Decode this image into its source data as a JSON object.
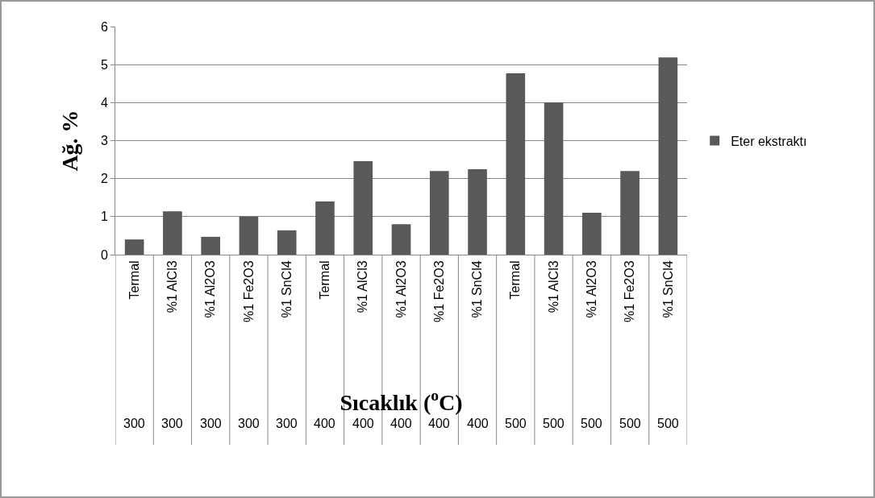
{
  "chart_data": {
    "type": "bar",
    "xlabel": "Sıcaklık ($^{o}$C)",
    "ylabel": "Ağ. %",
    "categories": [
      "Termal",
      "%1 AlCl3",
      "%1 Al2O3",
      "%1 Fe2O3",
      "%1 SnCl4",
      "Termal",
      "%1 AlCl3",
      "%1 Al2O3",
      "%1 Fe2O3",
      "%1 SnCl4",
      "Termal",
      "%1 AlCl3",
      "%1 Al2O3",
      "%1 Fe2O3",
      "%1 SnCl4"
    ],
    "annotations": [
      "300",
      "300",
      "300",
      "300",
      "300",
      "400",
      "400",
      "400",
      "400",
      "400",
      "500",
      "500",
      "500",
      "500",
      "500"
    ],
    "series": [
      {
        "name": "Eter ekstraktı",
        "color": "#595959",
        "values": [
          0.4,
          1.14,
          0.47,
          1.0,
          0.64,
          1.4,
          2.46,
          0.8,
          2.2,
          2.25,
          4.77,
          4.0,
          1.1,
          2.2,
          5.19
        ]
      }
    ],
    "ylim": [
      0,
      6
    ],
    "yticks": [
      0,
      1,
      2,
      3,
      4,
      5,
      6
    ],
    "grid": "y",
    "legend": "right"
  }
}
